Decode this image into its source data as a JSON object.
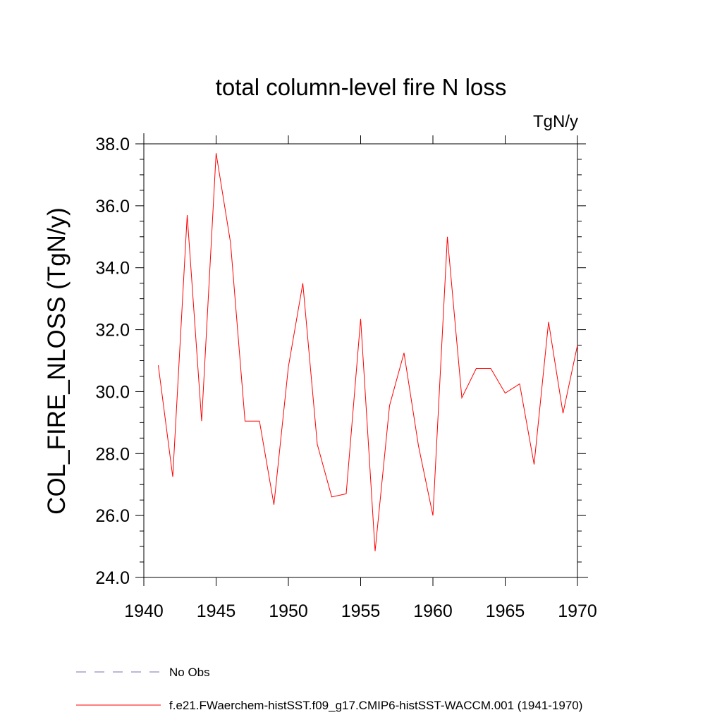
{
  "chart_data": {
    "type": "line",
    "title": "total column-level fire N loss",
    "units_label": "TgN/y",
    "ylabel": "COL_FIRE_NLOSS  (TgN/y)",
    "xlabel": "",
    "xlim": [
      1940,
      1970
    ],
    "ylim": [
      24.0,
      38.0
    ],
    "x_ticks": [
      1940,
      1945,
      1950,
      1955,
      1960,
      1965,
      1970
    ],
    "x_tick_labels": [
      "1940",
      "1945",
      "1950",
      "1955",
      "1960",
      "1965",
      "1970"
    ],
    "y_ticks": [
      24,
      26,
      28,
      30,
      32,
      34,
      36,
      38
    ],
    "y_tick_labels": [
      "24.0",
      "26.0",
      "28.0",
      "30.0",
      "32.0",
      "34.0",
      "36.0",
      "38.0"
    ],
    "series": [
      {
        "name": "f.e21.FWaerchem-histSST.f09_g17.CMIP6-histSST-WACCM.001 (1941-1970)",
        "color": "#ff0000",
        "x": [
          1941,
          1942,
          1943,
          1944,
          1945,
          1946,
          1947,
          1948,
          1949,
          1950,
          1951,
          1952,
          1953,
          1954,
          1955,
          1956,
          1957,
          1958,
          1959,
          1960,
          1961,
          1962,
          1963,
          1964,
          1965,
          1966,
          1967,
          1968,
          1969,
          1970
        ],
        "values": [
          30.85,
          27.25,
          35.7,
          29.05,
          37.7,
          34.8,
          29.05,
          29.05,
          26.35,
          30.8,
          33.5,
          28.3,
          26.6,
          26.7,
          32.35,
          24.85,
          29.55,
          31.25,
          28.25,
          26.0,
          35.0,
          29.8,
          30.75,
          30.75,
          29.95,
          30.25,
          27.65,
          32.25,
          29.3,
          31.5
        ]
      }
    ],
    "legend": {
      "placement": "bottom",
      "entries": [
        {
          "label": "No Obs",
          "color": "#7d6fb8",
          "style": "dashed"
        },
        {
          "label": "f.e21.FWaerchem-histSST.f09_g17.CMIP6-histSST-WACCM.001 (1941-1970)",
          "color": "#ff0000",
          "style": "solid"
        }
      ]
    }
  }
}
